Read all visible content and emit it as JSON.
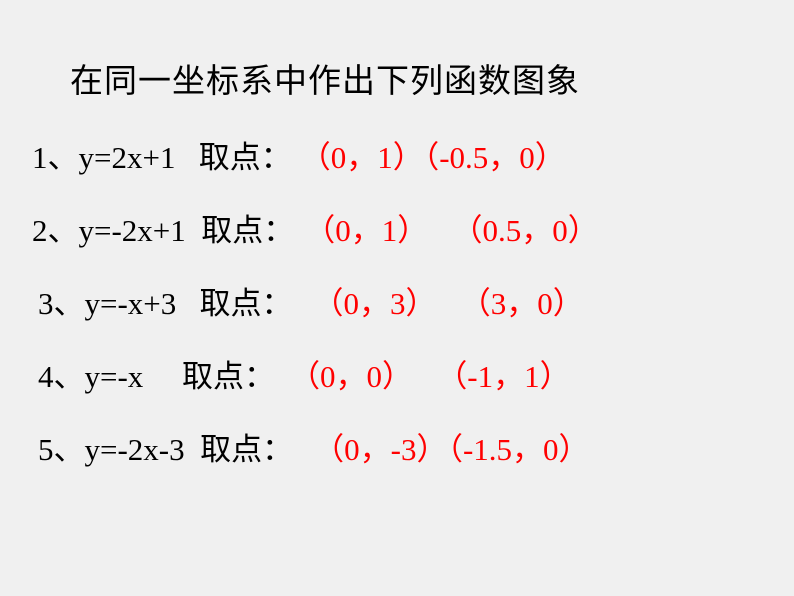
{
  "title": "在同一坐标系中作出下列函数图象",
  "rows": [
    {
      "label": "1、y=2x+1   取点：",
      "point1": "（0，1）",
      "point2": "（-0.5，0）"
    },
    {
      "label": "2、y=-2x+1  取点：",
      "point1": "（0，1）",
      "point2": " （0.5，0）"
    },
    {
      "label": "3、y=-x+3   取点：",
      "point1": "（0，3）",
      "point2": " （3，0）"
    },
    {
      "label": "4、y=-x     取点：",
      "point1": "（0，0）",
      "point2": " （-1，1）"
    },
    {
      "label": "5、y=-2x-3  取点：",
      "point1": "（0，-3）",
      "point2": "（-1.5，0）"
    }
  ],
  "styling": {
    "background_color": "#f0f0f0",
    "text_color": "#000000",
    "points_color": "#ff0000",
    "title_fontsize": 33,
    "body_fontsize": 31,
    "font_family": "SimSun"
  }
}
